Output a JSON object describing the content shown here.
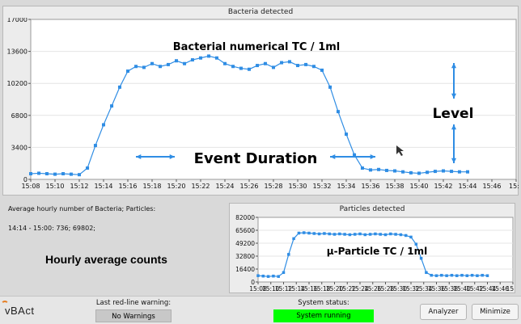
{
  "top_panel": {
    "title": "Bacteria detected"
  },
  "bottom_panel": {
    "title": "Particles detected"
  },
  "info": {
    "line1": "Average hourly number of Bacteria;  Particles:",
    "line2": "14:14 - 15:00:  736;   69802;",
    "hourly_label": "Hourly average counts"
  },
  "status": {
    "logo": "vBAct",
    "last_warning_label": "Last red-line warning:",
    "last_warning_value": "No Warnings",
    "system_status_label": "System status:",
    "system_status_value": "System running",
    "status_color": "#00ff00"
  },
  "buttons": {
    "analyzer": "Analyzer",
    "minimize": "Minimize"
  },
  "chart_data": [
    {
      "type": "line",
      "title": "Bacteria detected",
      "annotation_title": "Bacterial numerical TC / 1ml",
      "annotation_level": "Level",
      "annotation_event": "Event Duration",
      "color": "#2f8de4",
      "yticks": [
        "17000",
        "13600",
        "10200",
        "6800",
        "3400",
        "0"
      ],
      "ylim": [
        0,
        17000
      ],
      "xticks": [
        "15:08",
        "15:10",
        "15:12",
        "15:14",
        "15:16",
        "15:18",
        "15:20",
        "15:22",
        "15:24",
        "15:26",
        "15:28",
        "15:30",
        "15:32",
        "15:34",
        "15:36",
        "15:38",
        "15:40",
        "15:42",
        "15:44",
        "15:46",
        "15:4"
      ],
      "x_minutes": [
        0,
        0.67,
        1.33,
        2,
        2.67,
        3.33,
        4,
        4.67,
        5.33,
        6,
        6.67,
        7.33,
        8,
        8.67,
        9.33,
        10,
        10.67,
        11.33,
        12,
        12.67,
        13.33,
        14,
        14.67,
        15.33,
        16,
        16.67,
        17.33,
        18,
        18.67,
        19.33,
        20,
        20.67,
        21.33,
        22,
        22.67,
        23.33,
        24,
        24.67,
        25.33,
        26,
        26.67,
        27.33,
        28,
        28.67,
        29.33,
        30,
        30.67,
        31.33,
        32,
        32.67,
        33.33,
        34,
        34.67,
        35.33,
        36
      ],
      "values": [
        600,
        650,
        600,
        550,
        600,
        550,
        500,
        1200,
        3600,
        5800,
        7800,
        9800,
        11500,
        12000,
        11900,
        12300,
        12000,
        12200,
        12600,
        12300,
        12700,
        12900,
        13100,
        12900,
        12300,
        12000,
        11800,
        11700,
        12100,
        12300,
        11900,
        12400,
        12500,
        12100,
        12200,
        12000,
        11600,
        9800,
        7200,
        4800,
        2600,
        1200,
        1000,
        1050,
        950,
        900,
        800,
        700,
        650,
        750,
        850,
        900,
        850,
        800,
        800
      ]
    },
    {
      "type": "line",
      "title": "Particles detected",
      "annotation_title": "µ-Particle TC / 1ml",
      "color": "#2f8de4",
      "yticks": [
        "82000",
        "65600",
        "49200",
        "32800",
        "16400",
        "0"
      ],
      "ylim": [
        0,
        82000
      ],
      "xticks": [
        "15:08",
        "15:10",
        "15:12",
        "15:14",
        "15:16",
        "15:18",
        "15:20",
        "15:22",
        "15:24",
        "15:26",
        "15:28",
        "15:30",
        "15:32",
        "15:34",
        "15:36",
        "15:38",
        "15:40",
        "15:42",
        "15:44",
        "15:46",
        "15:4"
      ],
      "x_minutes": [
        0,
        0.8,
        1.6,
        2.4,
        3.2,
        4.0,
        4.8,
        5.6,
        6.4,
        7.2,
        8.0,
        8.8,
        9.6,
        10.4,
        11.2,
        12.0,
        12.8,
        13.6,
        14.4,
        15.2,
        16.0,
        16.8,
        17.6,
        18.4,
        19.2,
        20.0,
        20.8,
        21.6,
        22.4,
        23.2,
        24.0,
        24.8,
        25.6,
        26.4,
        27.2,
        28.0,
        28.8,
        29.6,
        30.4,
        31.2,
        32.0,
        32.8,
        33.6,
        34.4,
        35.2,
        36.0
      ],
      "values": [
        8000,
        7500,
        7000,
        7500,
        7000,
        12000,
        35000,
        55000,
        62000,
        62500,
        62000,
        61500,
        61000,
        61500,
        61000,
        60500,
        61000,
        60500,
        60000,
        60500,
        61000,
        60000,
        60500,
        61000,
        60500,
        60000,
        61000,
        60500,
        60000,
        59000,
        57000,
        48000,
        30000,
        12000,
        8500,
        8000,
        8500,
        8000,
        8500,
        8000,
        8500,
        8000,
        8500,
        8000,
        8500,
        8000
      ]
    }
  ]
}
